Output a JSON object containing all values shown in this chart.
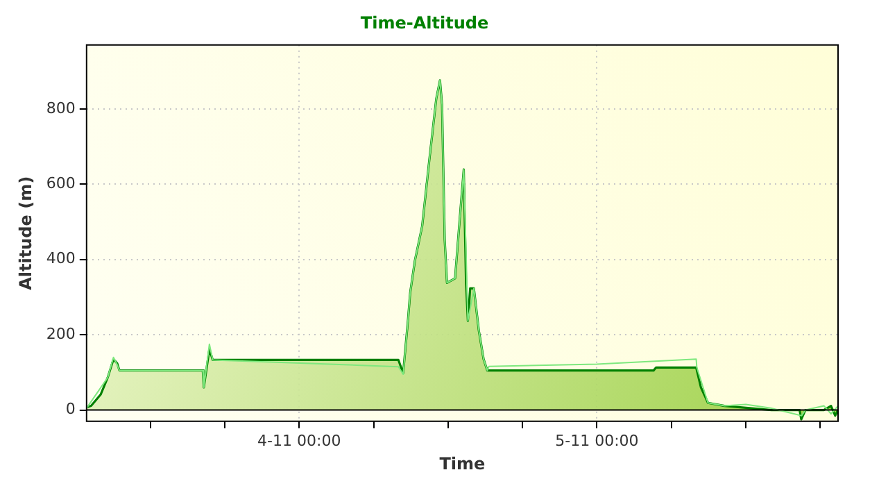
{
  "chart_data": {
    "type": "area",
    "title": "Time-Altitude",
    "xlabel": "Time",
    "ylabel": "Altitude (m)",
    "xlim": [
      "--11-03T06:52",
      "--11-05T19:26"
    ],
    "xticks": [
      {
        "value": "--11-03T12:00",
        "label": null
      },
      {
        "value": "--11-03T18:00",
        "label": null
      },
      {
        "value": "--11-04T00:00",
        "label": "4-11 00:00"
      },
      {
        "value": "--11-04T06:00",
        "label": null
      },
      {
        "value": "--11-04T12:00",
        "label": null
      },
      {
        "value": "--11-04T18:00",
        "label": null
      },
      {
        "value": "--11-05T00:00",
        "label": "5-11 00:00"
      },
      {
        "value": "--11-05T06:00",
        "label": null
      },
      {
        "value": "--11-05T12:00",
        "label": null
      },
      {
        "value": "--11-05T18:00",
        "label": null
      }
    ],
    "ylim": [
      -30,
      970
    ],
    "yticks": [
      0,
      200,
      400,
      600,
      800
    ],
    "grid": true,
    "legend": false,
    "series": [
      {
        "color": "#7ee87e",
        "type": "line",
        "x": [
          "--11-03T06:52",
          "--11-03T08:34",
          "--11-03T09:02",
          "--11-03T09:20",
          "--11-03T09:31",
          "--11-03T16:14",
          "--11-03T16:19",
          "--11-03T16:46",
          "--11-03T17:02",
          "--11-04T08:00",
          "--11-04T08:23",
          "--11-04T08:46",
          "--11-04T08:57",
          "--11-04T09:20",
          "--11-04T09:55",
          "--11-04T10:29",
          "--11-04T11:03",
          "--11-04T11:21",
          "--11-04T11:31",
          "--11-04T11:44",
          "--11-04T11:55",
          "--11-04T12:34",
          "--11-04T12:57",
          "--11-04T13:16",
          "--11-04T13:36",
          "--11-04T14:05",
          "--11-04T14:29",
          "--11-04T14:52",
          "--11-04T15:10",
          "--11-04T15:18",
          "--11-05T00:00",
          "--11-05T08:00",
          "--11-05T08:03",
          "--11-05T08:57",
          "--11-05T10:17",
          "--11-05T12:00",
          "--11-05T14:00",
          "--11-05T16:30",
          "--11-05T16:48",
          "--11-05T18:18",
          "--11-05T18:52",
          "--11-05T19:26"
        ],
        "values": [
          5,
          86,
          140,
          120,
          105,
          105,
          60,
          175,
          133,
          115,
          95,
          237,
          312,
          398,
          489,
          662,
          827,
          876,
          812,
          451,
          338,
          350,
          511,
          639,
          237,
          323,
          211,
          135,
          105,
          116,
          122,
          135,
          113,
          19,
          11,
          15,
          5,
          -15,
          0,
          11,
          -10,
          11
        ]
      },
      {
        "color": "#008000",
        "x": [
          "--11-03T06:52",
          "--11-03T07:14",
          "--11-03T08:00",
          "--11-03T08:34",
          "--11-03T09:02",
          "--11-03T09:20",
          "--11-03T09:31",
          "--11-03T16:14",
          "--11-03T16:19",
          "--11-03T16:46",
          "--11-03T17:02",
          "--11-04T08:00",
          "--11-04T08:23",
          "--11-04T08:46",
          "--11-04T08:57",
          "--11-04T09:20",
          "--11-04T09:55",
          "--11-04T10:29",
          "--11-04T11:03",
          "--11-04T11:21",
          "--11-04T11:31",
          "--11-04T11:44",
          "--11-04T11:55",
          "--11-04T12:00",
          "--11-04T12:34",
          "--11-04T12:57",
          "--11-04T13:16",
          "--11-04T13:27",
          "--11-04T13:36",
          "--11-04T13:47",
          "--11-04T14:05",
          "--11-04T14:29",
          "--11-04T14:52",
          "--11-04T15:10",
          "--11-05T04:34",
          "--11-05T04:46",
          "--11-05T08:00",
          "--11-05T08:23",
          "--11-05T08:57",
          "--11-05T10:17",
          "--11-05T14:04",
          "--11-05T16:20",
          "--11-05T16:28",
          "--11-05T16:48",
          "--11-05T18:17",
          "--11-05T18:52",
          "--11-05T19:12",
          "--11-05T19:26"
        ],
        "values": [
          7,
          11,
          41,
          86,
          135,
          124,
          105,
          105,
          60,
          162,
          133,
          133,
          98,
          237,
          312,
          398,
          489,
          662,
          827,
          876,
          812,
          451,
          338,
          338,
          350,
          511,
          639,
          338,
          237,
          323,
          323,
          211,
          135,
          105,
          105,
          113,
          113,
          60,
          19,
          11,
          0,
          0,
          -25,
          0,
          0,
          11,
          -15,
          0
        ]
      }
    ]
  }
}
